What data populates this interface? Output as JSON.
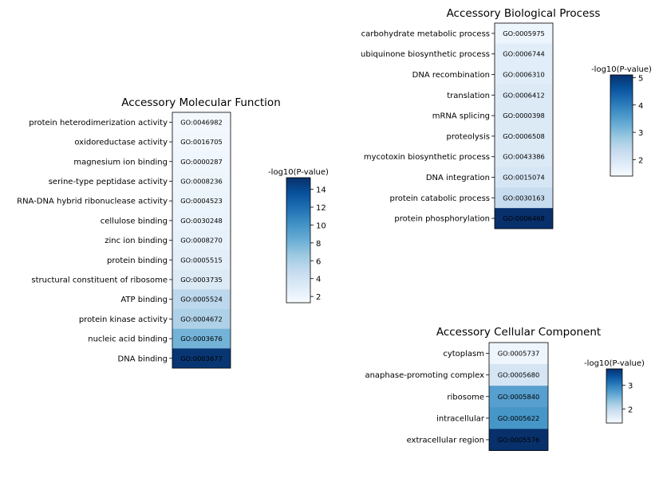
{
  "chart_data": [
    {
      "type": "heatmap",
      "title": "Accessory Molecular Function",
      "colorbar_label": "-log10(P-value)",
      "colorbar_range": [
        1.3,
        15.3
      ],
      "colorbar_ticks": [
        "2",
        "4",
        "6",
        "8",
        "10",
        "12",
        "14"
      ],
      "colormap": "Blues",
      "rows": [
        {
          "term": "protein heterodimerization activity",
          "go": "GO:0046982",
          "value": 1.6
        },
        {
          "term": "oxidoreductase activity",
          "go": "GO:0016705",
          "value": 1.7
        },
        {
          "term": "magnesium ion binding",
          "go": "GO:0000287",
          "value": 1.8
        },
        {
          "term": "serine-type peptidase activity",
          "go": "GO:0008236",
          "value": 1.9
        },
        {
          "term": "RNA-DNA hybrid ribonuclease activity",
          "go": "GO:0004523",
          "value": 2.1
        },
        {
          "term": "cellulose binding",
          "go": "GO:0030248",
          "value": 2.2
        },
        {
          "term": "zinc ion binding",
          "go": "GO:0008270",
          "value": 2.4
        },
        {
          "term": "protein binding",
          "go": "GO:0005515",
          "value": 2.7
        },
        {
          "term": "structural constituent of ribosome",
          "go": "GO:0003735",
          "value": 3.2
        },
        {
          "term": "ATP binding",
          "go": "GO:0005524",
          "value": 5.2
        },
        {
          "term": "protein kinase activity",
          "go": "GO:0004672",
          "value": 5.8
        },
        {
          "term": "nucleic acid binding",
          "go": "GO:0003676",
          "value": 8.0
        },
        {
          "term": "DNA binding",
          "go": "GO:0003677",
          "value": 15.0
        }
      ]
    },
    {
      "type": "heatmap",
      "title": "Accessory Biological Process",
      "colorbar_label": "-log10(P-value)",
      "colorbar_range": [
        1.4,
        5.1
      ],
      "colorbar_ticks": [
        "2",
        "3",
        "4",
        "5"
      ],
      "colormap": "Blues",
      "rows": [
        {
          "term": "carbohydrate metabolic process",
          "go": "GO:0005975",
          "value": 1.6
        },
        {
          "term": "ubiquinone biosynthetic process",
          "go": "GO:0006744",
          "value": 1.8
        },
        {
          "term": "DNA recombination",
          "go": "GO:0006310",
          "value": 1.8
        },
        {
          "term": "translation",
          "go": "GO:0006412",
          "value": 1.9
        },
        {
          "term": "mRNA splicing",
          "go": "GO:0000398",
          "value": 1.9
        },
        {
          "term": "proteolysis",
          "go": "GO:0006508",
          "value": 1.9
        },
        {
          "term": "mycotoxin biosynthetic process",
          "go": "GO:0043386",
          "value": 1.9
        },
        {
          "term": "DNA integration",
          "go": "GO:0015074",
          "value": 2.0
        },
        {
          "term": "protein catabolic process",
          "go": "GO:0030163",
          "value": 2.3
        },
        {
          "term": "protein phosphorylation",
          "go": "GO:0006468",
          "value": 5.1
        }
      ]
    },
    {
      "type": "heatmap",
      "title": "Accessory Cellular Component",
      "colorbar_label": "-log10(P-value)",
      "colorbar_range": [
        1.4,
        3.7
      ],
      "colorbar_ticks": [
        "2",
        "3"
      ],
      "colormap": "Blues",
      "rows": [
        {
          "term": "cytoplasm",
          "go": "GO:0005737",
          "value": 1.5
        },
        {
          "term": "anaphase-promoting complex",
          "go": "GO:0005680",
          "value": 1.8
        },
        {
          "term": "ribosome",
          "go": "GO:0005840",
          "value": 2.7
        },
        {
          "term": "intracellular",
          "go": "GO:0005622",
          "value": 2.8
        },
        {
          "term": "extracellular region",
          "go": "GO:0005576",
          "value": 3.7
        }
      ]
    }
  ]
}
